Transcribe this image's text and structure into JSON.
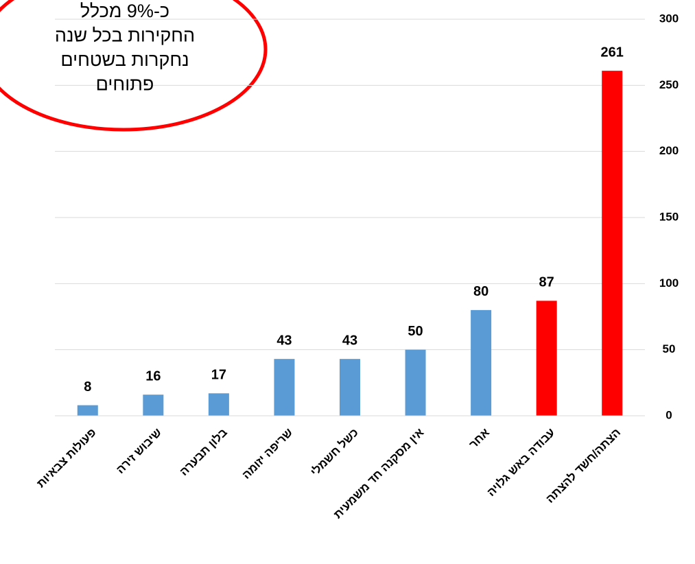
{
  "chart_data": {
    "type": "bar",
    "annotation": [
      "כ-9% מכלל",
      "החקירות בכל שנה",
      "נחקרות בשטחים",
      "פתוחים"
    ],
    "categories": [
      "פעולות צבאיות",
      "שיבוש זירה",
      "בלון תבערה",
      "שריפה יזומה",
      "כשל חשמלי",
      "אין מסקנה חד משמעית",
      "אחר",
      "עבודה באש גלויה",
      "הצתה/חשד להצתה"
    ],
    "values": [
      8,
      16,
      17,
      43,
      43,
      50,
      80,
      87,
      261
    ],
    "colors": [
      "#5b9bd5",
      "#5b9bd5",
      "#5b9bd5",
      "#5b9bd5",
      "#5b9bd5",
      "#5b9bd5",
      "#5b9bd5",
      "#ff0000",
      "#ff0000"
    ],
    "ylim": [
      0,
      300
    ],
    "yticks": [
      0,
      50,
      100,
      150,
      200,
      250,
      300
    ],
    "grid": true,
    "y_axis_side": "right"
  }
}
